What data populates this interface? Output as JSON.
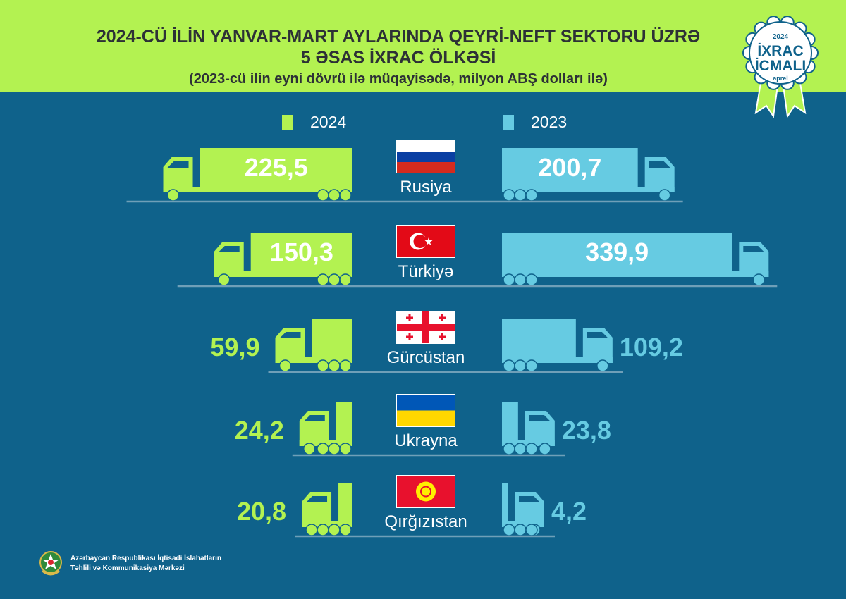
{
  "header": {
    "title_line1": "2024-CÜ İLİN YANVAR-MART AYLARINDA QEYRİ-NEFT SEKTORU ÜZRƏ",
    "title_line2": "5 ƏSAS İXRAC ÖLKƏSİ",
    "subtitle": "(2023-cü ilin eyni dövrü ilə müqayisədə, milyon ABŞ dolları ilə)"
  },
  "badge": {
    "year": "2024",
    "line1": "İXRAC",
    "line2": "İCMALI",
    "month": "aprel"
  },
  "colors": {
    "background": "#0f628b",
    "series_2024": "#b3f251",
    "series_2023": "#66cbe2",
    "header": "#b3f251"
  },
  "chart_data": {
    "type": "bar",
    "title": "2024-CÜ İLİN YANVAR-MART AYLARINDA QEYRİ-NEFT SEKTORU ÜZRƏ 5 ƏSAS İXRAC ÖLKƏSİ",
    "categories": [
      "Rusiya",
      "Türkiyə",
      "Gürcüstan",
      "Ukrayna",
      "Qırğızıstan"
    ],
    "value_labels_2024": [
      "225,5",
      "150,3",
      "59,9",
      "24,2",
      "20,8"
    ],
    "value_labels_2023": [
      "200,7",
      "339,9",
      "109,2",
      "23,8",
      "4,2"
    ],
    "series": [
      {
        "name": "2024",
        "values": [
          225.5,
          150.3,
          59.9,
          24.2,
          20.8
        ]
      },
      {
        "name": "2023",
        "values": [
          200.7,
          339.9,
          109.2,
          23.8,
          4.2
        ]
      }
    ],
    "legend_placement": "top"
  },
  "footer": {
    "line1": "Azərbaycan Respublikası İqtisadi İslahatların",
    "line2": "Təhlili və Kommunikasiya Mərkəzi"
  }
}
